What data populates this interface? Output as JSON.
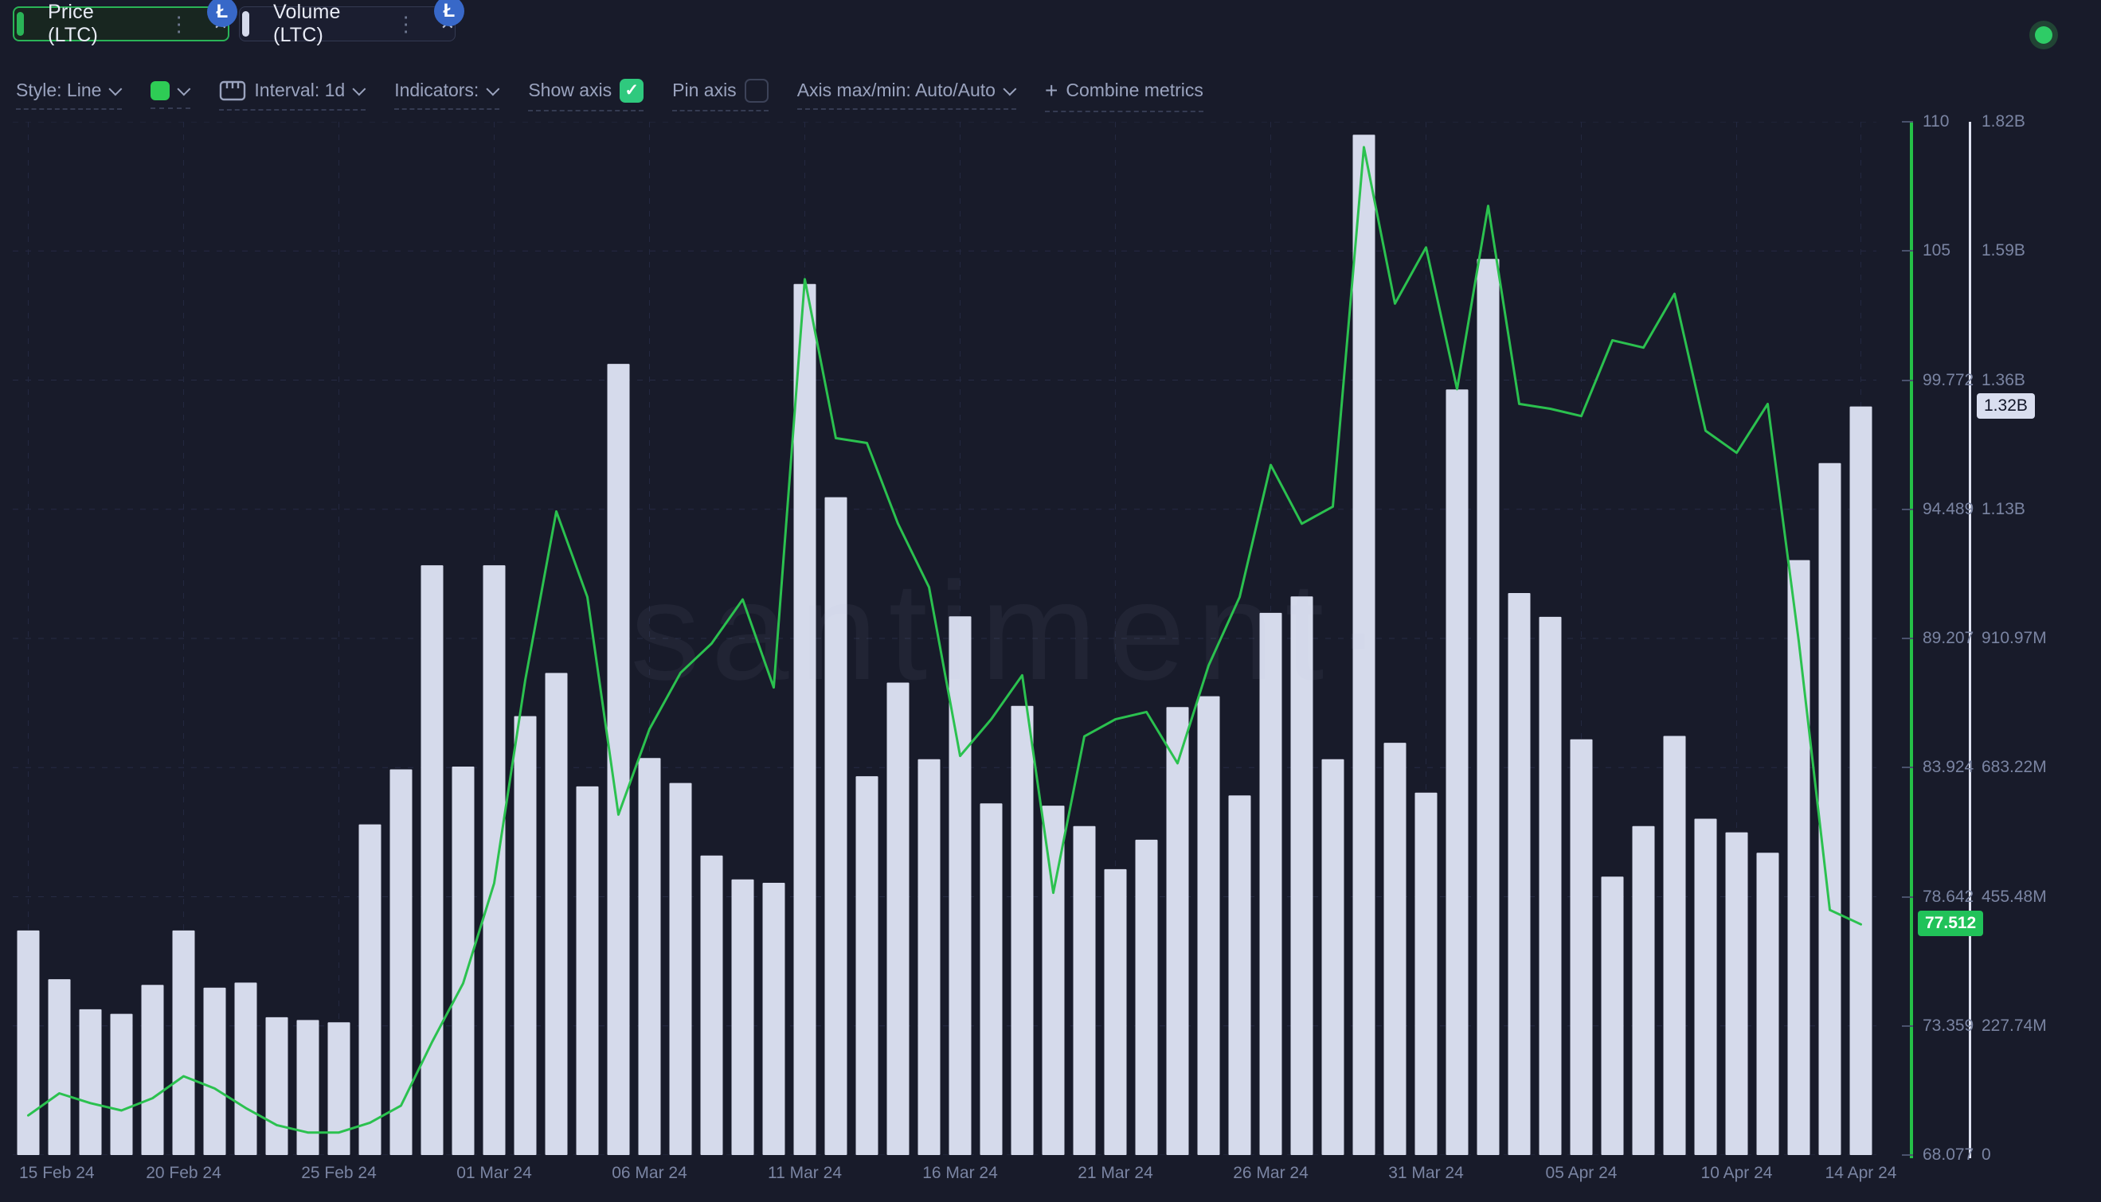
{
  "icons": {
    "kebab": "⋮",
    "close": "✕",
    "check": "✓",
    "plus": "+",
    "litecoin": "Ł"
  },
  "tabs": [
    {
      "label": "Price (LTC)",
      "active": true,
      "accent_color": "#2ab457"
    },
    {
      "label": "Volume (LTC)",
      "active": false,
      "accent_color": "#d5daeb"
    }
  ],
  "toolbar": {
    "style_label": "Style: Line",
    "swatch_color": "#2ecc55",
    "interval_label": "Interval: 1d",
    "indicators_label": "Indicators:",
    "show_axis_label": "Show axis",
    "show_axis_checked": true,
    "pin_axis_label": "Pin axis",
    "pin_axis_checked": false,
    "axis_maxmin_label": "Axis max/min: Auto/Auto",
    "combine_label": "Combine metrics"
  },
  "watermark": "santiment·",
  "status_dot_color": "#2ecc66",
  "chart_data": {
    "type": "line+bar",
    "interval": "1d",
    "start_date": "15 Feb 24",
    "end_date": "14 Apr 24",
    "x_tick_labels": [
      "15 Feb 24",
      "20 Feb 24",
      "25 Feb 24",
      "01 Mar 24",
      "06 Mar 24",
      "11 Mar 24",
      "16 Mar 24",
      "21 Mar 24",
      "26 Mar 24",
      "31 Mar 24",
      "05 Apr 24",
      "10 Apr 24",
      "14 Apr 24"
    ],
    "x_tick_day_indices": [
      0,
      5,
      10,
      15,
      20,
      25,
      30,
      35,
      40,
      45,
      50,
      55,
      59
    ],
    "series": [
      {
        "name": "Price (LTC)",
        "type": "line",
        "color": "#2bc14f",
        "values": [
          69.7,
          70.6,
          70.2,
          69.9,
          70.4,
          71.3,
          70.8,
          70.0,
          69.3,
          69.0,
          69.0,
          69.4,
          70.1,
          72.7,
          75.1,
          79.2,
          87.5,
          94.4,
          90.9,
          82.0,
          85.5,
          87.8,
          89.0,
          90.8,
          87.2,
          103.9,
          97.4,
          97.2,
          93.9,
          91.3,
          84.4,
          85.9,
          87.7,
          78.8,
          85.2,
          85.9,
          86.2,
          84.1,
          88.1,
          90.9,
          96.3,
          93.9,
          94.6,
          109.3,
          102.9,
          105.2,
          99.4,
          106.9,
          98.8,
          98.6,
          98.3,
          101.4,
          101.1,
          103.3,
          97.7,
          96.8,
          98.8,
          89.1,
          78.1,
          77.512
        ]
      },
      {
        "name": "Volume (LTC)",
        "type": "bar",
        "color": "#d5daeb",
        "values_millions": [
          396,
          310,
          257,
          249,
          300,
          396,
          295,
          304,
          243,
          238,
          234,
          583,
          680,
          1040,
          685,
          1040,
          774,
          850,
          650,
          1395,
          700,
          656,
          528,
          486,
          480,
          1536,
          1160,
          668,
          833,
          698,
          950,
          620,
          792,
          616,
          580,
          504,
          556,
          790,
          809,
          634,
          956,
          985,
          698,
          1799,
          727,
          639,
          1350,
          1580,
          991,
          949,
          733,
          491,
          580,
          739,
          593,
          569,
          533,
          1049,
          1220,
          1320
        ]
      }
    ],
    "price_axis": {
      "ticks": [
        "110",
        "105",
        "99.772",
        "94.489",
        "89.207",
        "83.924",
        "78.642",
        "73.359",
        "68.077"
      ],
      "min": 68.077,
      "max": 110.337,
      "current": "77.512",
      "current_value": 77.512,
      "color": "#25c147"
    },
    "volume_axis": {
      "ticks": [
        "1.82B",
        "1.59B",
        "1.36B",
        "1.13B",
        "910.97M",
        "683.22M",
        "455.48M",
        "227.74M",
        "0"
      ],
      "min_millions": 0,
      "max_millions": 1821.9,
      "current": "1.32B",
      "current_value_millions": 1320,
      "color": "#dfe3f2"
    },
    "grid": true,
    "legend_position": "none"
  }
}
